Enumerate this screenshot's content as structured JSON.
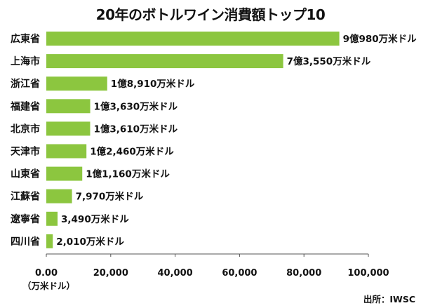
{
  "chart_data": {
    "type": "bar",
    "orientation": "horizontal",
    "title": "20年のボトルワイン消費額トップ10",
    "categories": [
      "広東省",
      "上海市",
      "浙江省",
      "福建省",
      "北京市",
      "天津市",
      "山東省",
      "江蘇省",
      "遼寧省",
      "四川省"
    ],
    "values": [
      90980,
      73550,
      18910,
      13630,
      13610,
      12460,
      11160,
      7970,
      3490,
      2010
    ],
    "value_labels": [
      "9億980万米ドル",
      "7億3,550万米ドル",
      "1億8,910万米ドル",
      "1億3,630万米ドル",
      "1億3,610万米ドル",
      "1億2,460万米ドル",
      "1億1,160万米ドル",
      "7,970万米ドル",
      "3,490万米ドル",
      "2,010万米ドル"
    ],
    "xlim": [
      0,
      100000
    ],
    "x_ticks": [
      0,
      20000,
      40000,
      60000,
      80000,
      100000
    ],
    "x_tick_labels": [
      "0.00",
      "20,000",
      "40,000",
      "60,000",
      "80,000",
      "100,000"
    ],
    "xlabel": "（万米ドル）",
    "ylabel": "",
    "bar_color": "#8cc63f",
    "grid": false,
    "source": "出所：IWSC"
  }
}
